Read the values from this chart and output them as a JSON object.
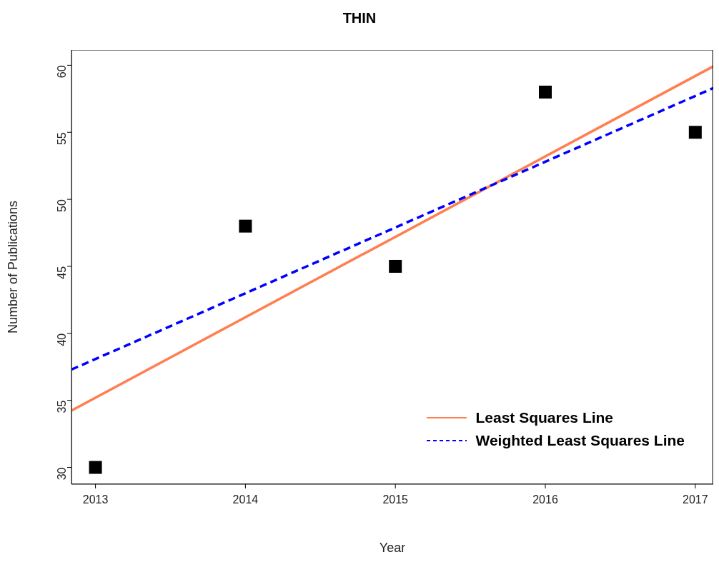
{
  "chart_data": {
    "type": "scatter",
    "title": "THIN",
    "xlabel": "Year",
    "ylabel": "Number of Publications",
    "xlim": [
      2012.84,
      2017.12
    ],
    "xticks": [
      2013,
      2014,
      2015,
      2016,
      2017
    ],
    "ylim": [
      28.75,
      61.14
    ],
    "yticks": [
      30,
      35,
      40,
      45,
      50,
      55,
      60
    ],
    "grid": false,
    "legend": "bottom right",
    "series": [
      {
        "type": "scatter",
        "color": "#000000",
        "marker": "square",
        "x": [
          2013,
          2014,
          2015,
          2016,
          2017
        ],
        "values": [
          30,
          48,
          45,
          58,
          55
        ]
      },
      {
        "type": "line",
        "name": "Least Squares Line",
        "color": "#ff7f50",
        "line_style": "solid",
        "marker": "none",
        "x": [
          2012.84,
          2017.12
        ],
        "values": [
          34.24,
          59.92
        ]
      },
      {
        "type": "line",
        "name": "Weighted Least Squares Line",
        "color": "#0000ff",
        "line_style": "dashed",
        "marker": "none",
        "x": [
          2012.84,
          2017.12
        ],
        "values": [
          37.3,
          58.3
        ]
      }
    ]
  }
}
